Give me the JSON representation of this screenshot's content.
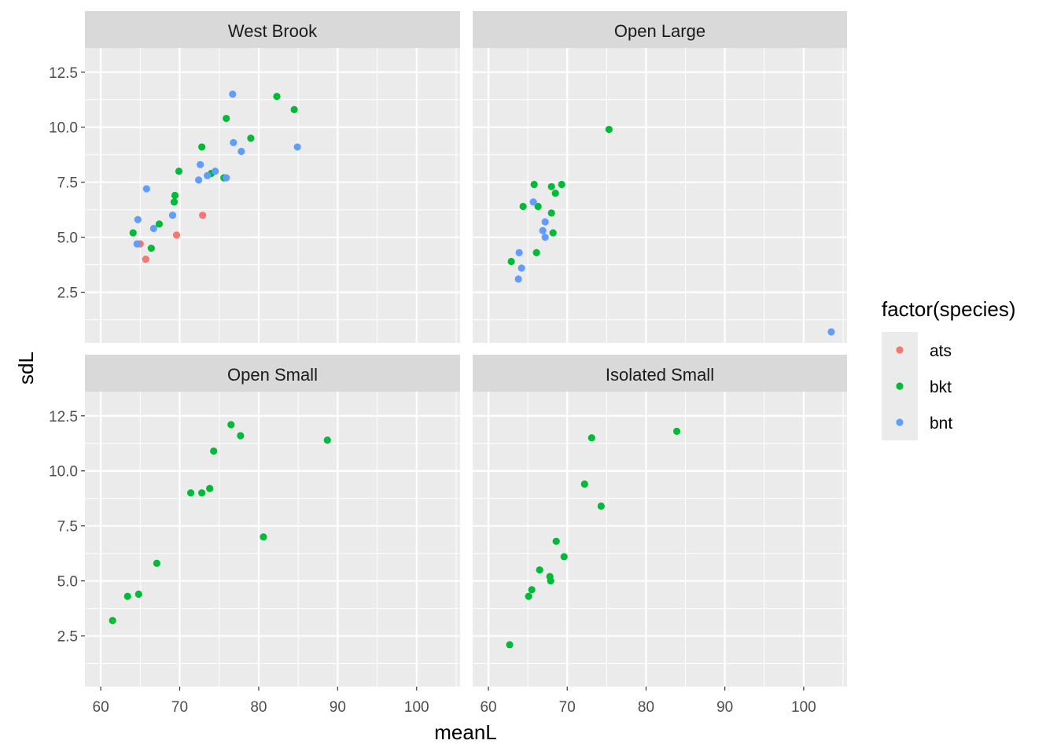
{
  "chart_data": {
    "type": "scatter",
    "xlabel": "meanL",
    "ylabel": "sdL",
    "xlim": [
      58,
      105.5
    ],
    "ylim": [
      0.2,
      13.6
    ],
    "x_ticks": [
      60,
      70,
      80,
      90,
      100
    ],
    "y_ticks": [
      2.5,
      5.0,
      7.5,
      10.0,
      12.5
    ],
    "x_tick_labels": [
      "60",
      "70",
      "80",
      "90",
      "100"
    ],
    "y_tick_labels": [
      "2.5",
      "5.0",
      "7.5",
      "10.0",
      "12.5"
    ],
    "grid": true,
    "legend": {
      "title": "factor(species)",
      "placement": "right",
      "entries": [
        {
          "label": "ats",
          "color": "#F8766D"
        },
        {
          "label": "bkt",
          "color": "#00BA38"
        },
        {
          "label": "bnt",
          "color": "#619CFF"
        }
      ]
    },
    "panels": [
      {
        "title": "West Brook",
        "series": [
          {
            "name": "ats",
            "points": [
              [
                65.0,
                4.7
              ],
              [
                65.7,
                4.0
              ],
              [
                69.6,
                5.1
              ],
              [
                72.9,
                6.0
              ]
            ]
          },
          {
            "name": "bkt",
            "points": [
              [
                64.1,
                5.2
              ],
              [
                66.4,
                4.5
              ],
              [
                67.4,
                5.6
              ],
              [
                69.3,
                6.6
              ],
              [
                69.4,
                6.9
              ],
              [
                69.9,
                8.0
              ],
              [
                72.8,
                9.1
              ],
              [
                74.0,
                7.9
              ],
              [
                75.6,
                7.7
              ],
              [
                75.9,
                10.4
              ],
              [
                79.0,
                9.5
              ],
              [
                82.3,
                11.4
              ],
              [
                84.5,
                10.8
              ]
            ]
          },
          {
            "name": "bnt",
            "points": [
              [
                64.6,
                4.7
              ],
              [
                64.7,
                5.8
              ],
              [
                65.8,
                7.2
              ],
              [
                66.7,
                5.4
              ],
              [
                69.1,
                6.0
              ],
              [
                72.4,
                7.6
              ],
              [
                72.6,
                8.3
              ],
              [
                73.5,
                7.8
              ],
              [
                74.5,
                8.0
              ],
              [
                75.9,
                7.7
              ],
              [
                76.7,
                11.5
              ],
              [
                76.8,
                9.3
              ],
              [
                77.8,
                8.9
              ],
              [
                84.9,
                9.1
              ]
            ]
          }
        ]
      },
      {
        "title": "Open Large",
        "series": [
          {
            "name": "bkt",
            "points": [
              [
                62.9,
                3.9
              ],
              [
                64.4,
                6.4
              ],
              [
                65.8,
                7.4
              ],
              [
                66.1,
                4.3
              ],
              [
                66.3,
                6.4
              ],
              [
                68.0,
                7.3
              ],
              [
                68.0,
                6.1
              ],
              [
                68.2,
                5.2
              ],
              [
                68.5,
                7.0
              ],
              [
                69.3,
                7.4
              ],
              [
                75.3,
                9.9
              ]
            ]
          },
          {
            "name": "bnt",
            "points": [
              [
                63.8,
                3.1
              ],
              [
                63.9,
                4.3
              ],
              [
                64.2,
                3.6
              ],
              [
                65.7,
                6.6
              ],
              [
                66.9,
                5.3
              ],
              [
                67.2,
                5.0
              ],
              [
                67.2,
                5.7
              ],
              [
                103.5,
                0.7
              ]
            ]
          }
        ]
      },
      {
        "title": "Open Small",
        "series": [
          {
            "name": "bkt",
            "points": [
              [
                61.5,
                3.2
              ],
              [
                63.4,
                4.3
              ],
              [
                64.8,
                4.4
              ],
              [
                67.1,
                5.8
              ],
              [
                71.4,
                9.0
              ],
              [
                72.8,
                9.0
              ],
              [
                73.8,
                9.2
              ],
              [
                74.3,
                10.9
              ],
              [
                76.5,
                12.1
              ],
              [
                77.7,
                11.6
              ],
              [
                80.6,
                7.0
              ],
              [
                88.7,
                11.4
              ]
            ]
          }
        ]
      },
      {
        "title": "Isolated Small",
        "series": [
          {
            "name": "bkt",
            "points": [
              [
                62.7,
                2.1
              ],
              [
                65.1,
                4.3
              ],
              [
                65.5,
                4.6
              ],
              [
                66.5,
                5.5
              ],
              [
                67.8,
                5.2
              ],
              [
                67.9,
                5.0
              ],
              [
                68.6,
                6.8
              ],
              [
                69.6,
                6.1
              ],
              [
                72.2,
                9.4
              ],
              [
                73.1,
                11.5
              ],
              [
                74.3,
                8.4
              ],
              [
                83.9,
                11.8
              ]
            ]
          }
        ]
      }
    ]
  }
}
